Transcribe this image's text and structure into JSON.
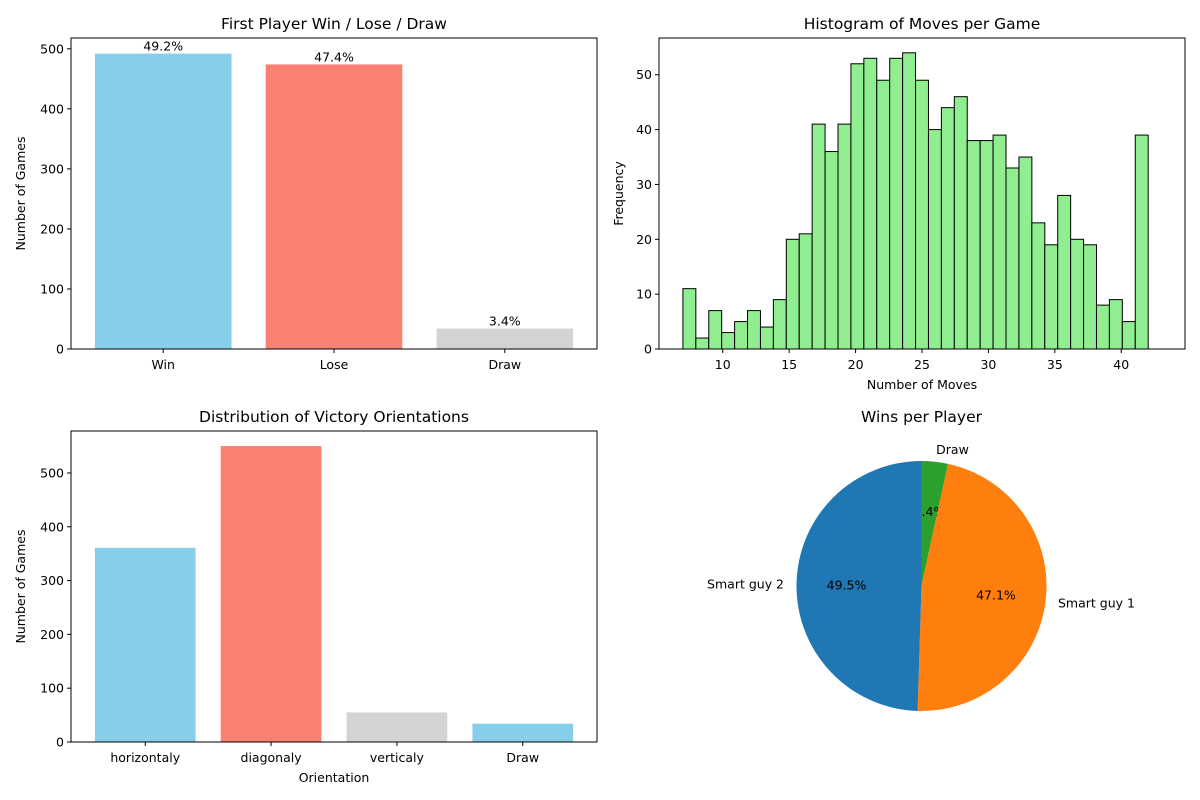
{
  "chart_data": [
    {
      "type": "bar",
      "title": "First Player Win / Lose / Draw",
      "xlabel": "",
      "ylabel": "Number of Games",
      "categories": [
        "Win",
        "Lose",
        "Draw"
      ],
      "values": [
        492,
        474,
        34
      ],
      "data_labels": [
        "49.2%",
        "47.4%",
        "3.4%"
      ],
      "colors": [
        "#87ceeb",
        "#fa8072",
        "#d3d3d3"
      ],
      "ylim": [
        0,
        518
      ],
      "yticks": [
        0,
        100,
        200,
        300,
        400,
        500
      ],
      "grid": false
    },
    {
      "type": "bar",
      "subtype": "histogram",
      "title": "Histogram of Moves per Game",
      "xlabel": "Number of Moves",
      "ylabel": "Frequency",
      "bin_start": 7,
      "bin_width": 0.973,
      "values": [
        11,
        2,
        7,
        3,
        5,
        7,
        4,
        9,
        20,
        21,
        41,
        36,
        41,
        52,
        53,
        49,
        53,
        54,
        49,
        40,
        44,
        46,
        38,
        38,
        39,
        33,
        35,
        23,
        19,
        28,
        20,
        19,
        8,
        9,
        5,
        39
      ],
      "color": "#90ee90",
      "edgecolor": "#000000",
      "xlim": [
        5.2,
        44.8
      ],
      "ylim": [
        0,
        56.7
      ],
      "xticks": [
        10,
        15,
        20,
        25,
        30,
        35,
        40
      ],
      "yticks": [
        0,
        10,
        20,
        30,
        40,
        50
      ],
      "grid": false
    },
    {
      "type": "bar",
      "title": "Distribution of Victory Orientations",
      "xlabel": "Orientation",
      "ylabel": "Number of Games",
      "categories": [
        "horizontaly",
        "diagonaly",
        "verticaly",
        "Draw"
      ],
      "values": [
        361,
        550,
        55,
        34
      ],
      "colors": [
        "#87ceeb",
        "#fa8072",
        "#d3d3d3",
        "#87ceeb"
      ],
      "ylim": [
        0,
        578
      ],
      "yticks": [
        0,
        100,
        200,
        300,
        400,
        500
      ],
      "grid": false
    },
    {
      "type": "pie",
      "title": "Wins per Player",
      "slices": [
        {
          "label": "Draw",
          "value": 3.4,
          "pct": "3.4%",
          "color": "#2ca02c"
        },
        {
          "label": "Smart guy 1",
          "value": 47.1,
          "pct": "47.1%",
          "color": "#ff7f0e"
        },
        {
          "label": "Smart guy 2",
          "value": 49.5,
          "pct": "49.5%",
          "color": "#1f77b4"
        }
      ],
      "start_angle_deg": 90,
      "direction": "clockwise"
    }
  ]
}
